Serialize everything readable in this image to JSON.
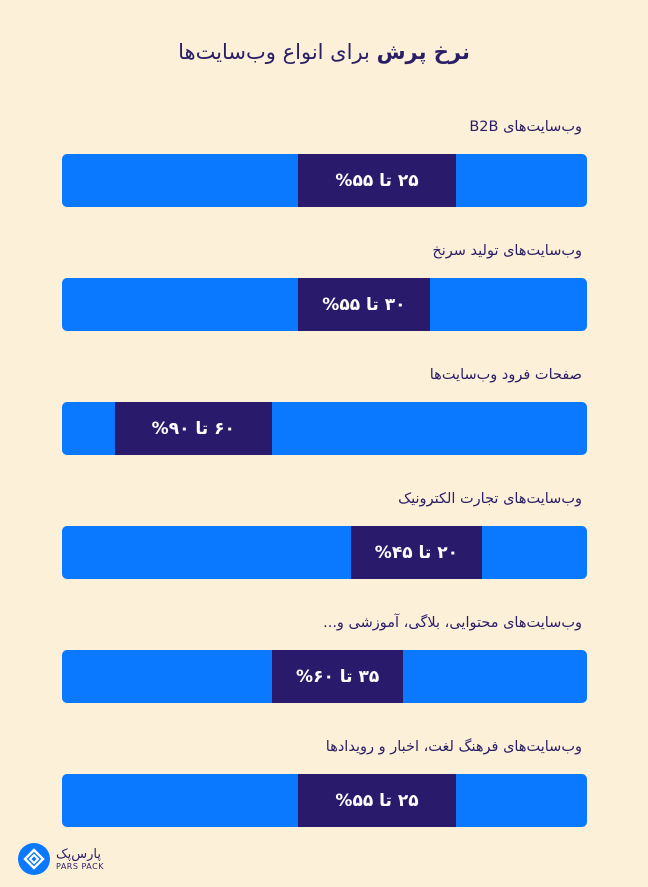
{
  "title": {
    "highlight": "نرخ پرش",
    "rest": " برای انواع وب‌سایت‌ها"
  },
  "chart_data": {
    "type": "bar",
    "title": "نرخ پرش برای انواع وب‌سایت‌ها",
    "unit": "%",
    "categories": [
      "وب‌سایت‌های B2B",
      "وب‌سایت‌های تولید سرنخ",
      "صفحات فرود وب‌سایت‌ها",
      "وب‌سایت‌های تجارت الکترونیک",
      "وب‌سایت‌های محتوایی، بلاگی، آموزشی و...",
      "وب‌سایت‌های فرهنگ لغت، اخبار و رویدادها"
    ],
    "ranges": [
      {
        "low": 25,
        "high": 55,
        "label": "۲۵ تا ۵۵%"
      },
      {
        "low": 30,
        "high": 55,
        "label": "۳۰ تا ۵۵%"
      },
      {
        "low": 60,
        "high": 90,
        "label": "۶۰ تا ۹۰%"
      },
      {
        "low": 20,
        "high": 45,
        "label": "۲۰ تا ۴۵%"
      },
      {
        "low": 35,
        "high": 60,
        "label": "۳۵ تا ۶۰%"
      },
      {
        "low": 25,
        "high": 55,
        "label": "۲۵ تا ۵۵%"
      }
    ],
    "xlim": [
      0,
      100
    ],
    "colors": {
      "track": "#0a78ff",
      "range": "#2a1a6c",
      "background": "#fdf0d8",
      "text": "#2a1f66"
    }
  },
  "logo": {
    "fa": "پارس‌پک",
    "en": "PARS PACK",
    "icon": "parspack-logo-icon"
  }
}
